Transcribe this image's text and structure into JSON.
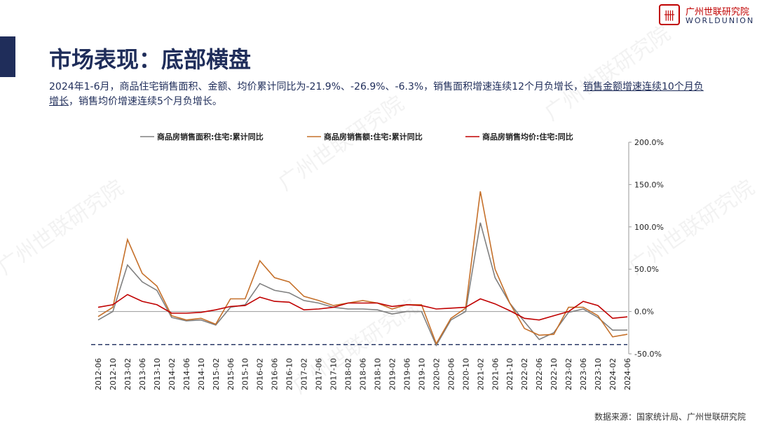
{
  "header": {
    "title": "市场表现：底部横盘",
    "logo_cn": "广州世联研究院",
    "logo_en": "WORLDUNION"
  },
  "summary": [
    "2024年1-6月，商品住宅销售面积、金额、均价累计同比为-21.9%、-26.9%、-6.3%，销售面积增速连续12个月负增长，",
    "销售金额增速连续10个月负增长",
    "，销售均价增速连续5个月负增长。"
  ],
  "watermark": "广州世联研究院",
  "source": "数据来源：国家统计局、广州世联研究院",
  "chart_data": {
    "type": "line",
    "categories": [
      "2012-06",
      "2012-10",
      "2013-02",
      "2013-06",
      "2013-10",
      "2014-02",
      "2014-06",
      "2014-10",
      "2015-02",
      "2015-06",
      "2015-10",
      "2016-02",
      "2016-06",
      "2016-10",
      "2017-02",
      "2017-06",
      "2017-10",
      "2018-02",
      "2018-06",
      "2018-10",
      "2019-02",
      "2019-06",
      "2019-10",
      "2020-02",
      "2020-06",
      "2020-10",
      "2021-02",
      "2021-06",
      "2021-10",
      "2022-02",
      "2022-06",
      "2022-10",
      "2023-02",
      "2023-06",
      "2023-10",
      "2024-02",
      "2024-06"
    ],
    "series": [
      {
        "name": "商品房销售面积:住宅:累计同比",
        "color": "#808080",
        "values": [
          -10,
          0,
          55,
          35,
          25,
          -7,
          -11,
          -10,
          -16,
          5,
          8,
          33,
          25,
          22,
          13,
          10,
          5,
          3,
          3,
          2,
          -3,
          0,
          0,
          -40,
          -10,
          0,
          105,
          40,
          10,
          -12,
          -33,
          -25,
          -1,
          3,
          -7,
          -22,
          -21.9
        ]
      },
      {
        "name": "商品房销售额:住宅:累计同比",
        "color": "#c5702a",
        "values": [
          -6,
          5,
          85,
          45,
          30,
          -5,
          -10,
          -8,
          -15,
          15,
          15,
          60,
          40,
          35,
          18,
          13,
          7,
          10,
          13,
          10,
          3,
          8,
          8,
          -38,
          -8,
          4,
          142,
          50,
          10,
          -20,
          -28,
          -27,
          5,
          5,
          -5,
          -30,
          -26.9
        ]
      },
      {
        "name": "商品房销售均价:住宅:同比",
        "color": "#c00000",
        "values": [
          5,
          8,
          20,
          12,
          8,
          -2,
          -2,
          -1,
          2,
          6,
          7,
          17,
          12,
          11,
          2,
          3,
          5,
          10,
          10,
          10,
          6,
          8,
          7,
          3,
          4,
          5,
          15,
          9,
          1,
          -8,
          -10,
          -5,
          0,
          12,
          7,
          -8,
          -6.3
        ]
      }
    ],
    "ylim": [
      -50,
      200
    ],
    "yticks": [
      {
        "value": 200,
        "label": "200.0%"
      },
      {
        "value": 150,
        "label": "150.0%"
      },
      {
        "value": 100,
        "label": "100.0%"
      },
      {
        "value": 50,
        "label": "50.0%"
      },
      {
        "value": 0,
        "label": "0.0%"
      },
      {
        "value": -50,
        "label": "-50.0%"
      }
    ],
    "y_axis_side": "right",
    "legend": "top",
    "reference_line": {
      "value": -39,
      "color": "#2b3a67",
      "style": "dashed"
    }
  }
}
